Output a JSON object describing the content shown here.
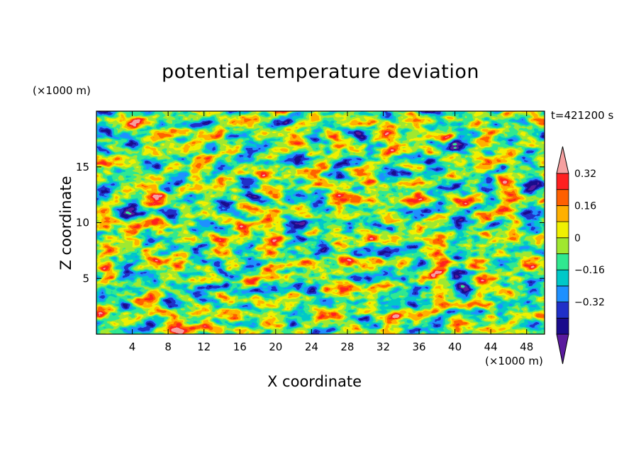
{
  "chart_data": {
    "type": "heatmap",
    "title": "potential temperature deviation",
    "xlabel": "X coordinate",
    "ylabel": "Z coordinate",
    "x_unit": "(×1000 m)",
    "z_unit": "(×1000 m)",
    "time_label": "t=421200 s",
    "xlim": [
      0,
      50
    ],
    "zlim": [
      0,
      20
    ],
    "x_ticks": [
      4,
      8,
      12,
      16,
      20,
      24,
      28,
      32,
      36,
      40,
      44,
      48
    ],
    "z_ticks": [
      5,
      10,
      15
    ],
    "colorbar": {
      "levels": [
        -0.48,
        -0.4,
        -0.32,
        -0.24,
        -0.16,
        -0.08,
        0,
        0.08,
        0.16,
        0.24,
        0.32,
        0.4
      ],
      "colors": [
        "#5a1a9e",
        "#1a0b8c",
        "#2030c8",
        "#1e90ff",
        "#00c8c8",
        "#30e890",
        "#a0e830",
        "#f0f000",
        "#ffb000",
        "#ff6000",
        "#ff2020",
        "#f5a0a0"
      ],
      "tick_labels": [
        "-0.32",
        "-0.16",
        "0",
        "0.16",
        "0.32"
      ],
      "tick_values": [
        -0.32,
        -0.16,
        0,
        0.16,
        0.32
      ]
    }
  }
}
